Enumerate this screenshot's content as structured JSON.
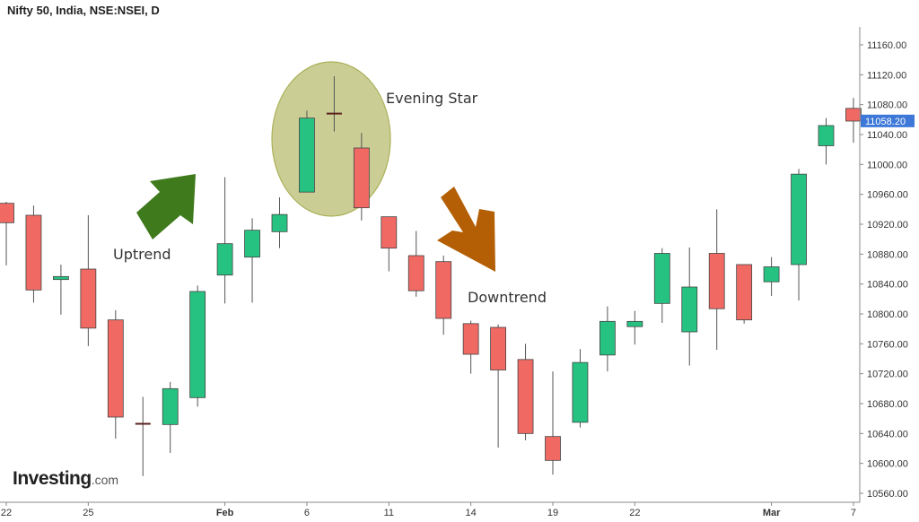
{
  "page": {
    "title": "Nifty 50, India, NSE:NSEI, D"
  },
  "logo": {
    "main": "Investing",
    "suffix": ".com"
  },
  "colors": {
    "up": "#26c281",
    "down": "#f06a63",
    "wick": "#555555",
    "axis": "#888888",
    "tag": "#3d78d8",
    "green_arrow": "#3f7a1c",
    "orange_arrow": "#b45f06",
    "ellipse_fill": "#c5c98a",
    "ellipse_stroke": "#a2a847"
  },
  "chart_data": {
    "type": "candlestick",
    "title": "Nifty 50, India, NSE:NSEI, D",
    "ylim": [
      10548,
      11184
    ],
    "y_ticks": [
      10560,
      10600,
      10640,
      10680,
      10720,
      10760,
      10800,
      10840,
      10880,
      10920,
      10960,
      11000,
      11040,
      11080,
      11120,
      11160
    ],
    "y_tick_labels": [
      "10560.00",
      "10600.00",
      "10640.00",
      "10680.00",
      "10720.00",
      "10760.00",
      "10800.00",
      "10840.00",
      "10880.00",
      "10920.00",
      "10960.00",
      "11000.00",
      "11040.00",
      "11080.00",
      "11120.00",
      "11160.00"
    ],
    "x_ticks": [
      {
        "index": 0,
        "label": "22",
        "bold": false
      },
      {
        "index": 3,
        "label": "25",
        "bold": false
      },
      {
        "index": 8,
        "label": "Feb",
        "bold": true
      },
      {
        "index": 11,
        "label": "6",
        "bold": false
      },
      {
        "index": 14,
        "label": "11",
        "bold": false
      },
      {
        "index": 17,
        "label": "14",
        "bold": false
      },
      {
        "index": 20,
        "label": "19",
        "bold": false
      },
      {
        "index": 23,
        "label": "22",
        "bold": false
      },
      {
        "index": 28,
        "label": "Mar",
        "bold": true
      },
      {
        "index": 31,
        "label": "7",
        "bold": false
      }
    ],
    "last_price": 11058.2,
    "last_price_label": "11058.20",
    "candles": [
      {
        "o": 10948,
        "h": 10950,
        "l": 10865,
        "c": 10922
      },
      {
        "o": 10932,
        "h": 10945,
        "l": 10815,
        "c": 10832
      },
      {
        "o": 10846,
        "h": 10866,
        "l": 10799,
        "c": 10850
      },
      {
        "o": 10860,
        "h": 10932,
        "l": 10757,
        "c": 10781
      },
      {
        "o": 10792,
        "h": 10805,
        "l": 10633,
        "c": 10662
      },
      {
        "o": 10653,
        "h": 10689,
        "l": 10583,
        "c": 10653
      },
      {
        "o": 10652,
        "h": 10709,
        "l": 10614,
        "c": 10700
      },
      {
        "o": 10688,
        "h": 10838,
        "l": 10676,
        "c": 10830
      },
      {
        "o": 10852,
        "h": 10983,
        "l": 10814,
        "c": 10894
      },
      {
        "o": 10876,
        "h": 10928,
        "l": 10815,
        "c": 10912
      },
      {
        "o": 10910,
        "h": 10956,
        "l": 10888,
        "c": 10933
      },
      {
        "o": 10963,
        "h": 11072,
        "l": 10963,
        "c": 11062
      },
      {
        "o": 11068,
        "h": 11118,
        "l": 11044,
        "c": 11068
      },
      {
        "o": 11022,
        "h": 11042,
        "l": 10925,
        "c": 10942
      },
      {
        "o": 10930,
        "h": 10930,
        "l": 10857,
        "c": 10888
      },
      {
        "o": 10878,
        "h": 10911,
        "l": 10823,
        "c": 10831
      },
      {
        "o": 10870,
        "h": 10878,
        "l": 10772,
        "c": 10794
      },
      {
        "o": 10787,
        "h": 10791,
        "l": 10720,
        "c": 10746
      },
      {
        "o": 10782,
        "h": 10786,
        "l": 10621,
        "c": 10725
      },
      {
        "o": 10739,
        "h": 10760,
        "l": 10631,
        "c": 10640
      },
      {
        "o": 10636,
        "h": 10723,
        "l": 10585,
        "c": 10604
      },
      {
        "o": 10655,
        "h": 10753,
        "l": 10648,
        "c": 10735
      },
      {
        "o": 10745,
        "h": 10810,
        "l": 10723,
        "c": 10790
      },
      {
        "o": 10783,
        "h": 10804,
        "l": 10759,
        "c": 10790
      },
      {
        "o": 10814,
        "h": 10888,
        "l": 10788,
        "c": 10881
      },
      {
        "o": 10776,
        "h": 10889,
        "l": 10731,
        "c": 10836
      },
      {
        "o": 10881,
        "h": 10940,
        "l": 10752,
        "c": 10807
      },
      {
        "o": 10866,
        "h": 10866,
        "l": 10787,
        "c": 10792
      },
      {
        "o": 10843,
        "h": 10876,
        "l": 10824,
        "c": 10863
      },
      {
        "o": 10866,
        "h": 10994,
        "l": 10818,
        "c": 10987
      },
      {
        "o": 11025,
        "h": 11062,
        "l": 11000,
        "c": 11052
      },
      {
        "o": 11075,
        "h": 11089,
        "l": 11029,
        "c": 11058
      }
    ],
    "annotations": [
      {
        "text": "Evening Star"
      },
      {
        "text": "Uptrend"
      },
      {
        "text": "Downtrend"
      }
    ]
  }
}
